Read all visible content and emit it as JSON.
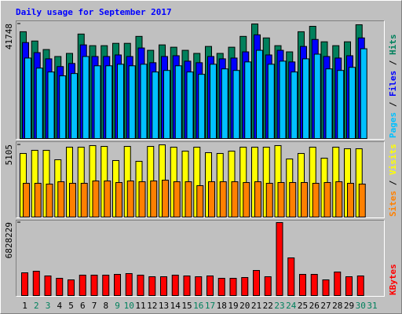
{
  "chart_data": {
    "type": "bar",
    "title": "Daily usage for September 2017",
    "legend_separator": "/",
    "categories": [
      "1",
      "2",
      "3",
      "4",
      "5",
      "6",
      "7",
      "8",
      "9",
      "10",
      "11",
      "12",
      "13",
      "14",
      "15",
      "16",
      "17",
      "18",
      "19",
      "20",
      "21",
      "22",
      "23",
      "24",
      "25",
      "26",
      "27",
      "28",
      "29",
      "30",
      "31"
    ],
    "category_colors": [
      "#000000",
      "#00805c",
      "#00805c",
      "#000000",
      "#000000",
      "#000000",
      "#000000",
      "#000000",
      "#00805c",
      "#00805c",
      "#000000",
      "#000000",
      "#000000",
      "#000000",
      "#000000",
      "#00805c",
      "#00805c",
      "#000000",
      "#000000",
      "#000000",
      "#000000",
      "#000000",
      "#00805c",
      "#00805c",
      "#000000",
      "#000000",
      "#000000",
      "#000000",
      "#000000",
      "#00805c",
      "#00805c"
    ],
    "panels": [
      {
        "ylim": [
          0,
          41748
        ],
        "yticks": [
          41748
        ],
        "series": [
          {
            "name": "Pages",
            "color": "#00c0ff",
            "values": [
              29328,
              25662,
              24252,
              22842,
              23688,
              29892,
              26508,
              26508,
              27072,
              26508,
              27072,
              24252,
              24816,
              26508,
              24252,
              23406,
              27072,
              25380,
              24816,
              27918,
              32148,
              27072,
              28200,
              24252,
              29046,
              30738,
              25380,
              24816,
              25944,
              32712,
              null
            ]
          },
          {
            "name": "Files",
            "color": "#0000ff",
            "values": [
              34968,
              31302,
              29046,
              26226,
              27354,
              34122,
              29892,
              29892,
              30456,
              29892,
              32994,
              27636,
              29892,
              30174,
              28200,
              27636,
              29892,
              29046,
              29328,
              31584,
              37788,
              30456,
              32148,
              27918,
              33558,
              36096,
              29892,
              29328,
              30174,
              36660,
              null
            ]
          },
          {
            "name": "Hits",
            "color": "#00805c",
            "values": [
              38916,
              35532,
              32430,
              29892,
              31020,
              38070,
              33840,
              33840,
              34686,
              34686,
              37224,
              32148,
              34122,
              33276,
              32148,
              31020,
              33558,
              31020,
              33276,
              37224,
              41748,
              36660,
              33840,
              31584,
              38916,
              40890,
              35250,
              33840,
              35250,
              41454,
              null
            ]
          }
        ]
      },
      {
        "ylim": [
          0,
          5105
        ],
        "yticks": [
          5105
        ],
        "series": [
          {
            "name": "Sites",
            "color": "#ff8000",
            "values": [
              2387,
              2387,
              2331,
              2498,
              2387,
              2387,
              2553,
              2553,
              2442,
              2553,
              2498,
              2553,
              2609,
              2498,
              2498,
              2220,
              2498,
              2498,
              2498,
              2442,
              2498,
              2387,
              2442,
              2442,
              2442,
              2387,
              2442,
              2498,
              2387,
              2331,
              null
            ]
          },
          {
            "name": "Visits",
            "color": "#ffff00",
            "values": [
              4496,
              4718,
              4718,
              4052,
              4940,
              4940,
              5051,
              4995,
              3996,
              4995,
              3941,
              4995,
              5105,
              4940,
              4662,
              4940,
              4551,
              4496,
              4662,
              4940,
              4940,
              4940,
              5051,
              4107,
              4496,
              4940,
              4163,
              4940,
              4829,
              4829,
              null
            ]
          }
        ]
      },
      {
        "ylim": [
          0,
          6828229
        ],
        "yticks": [
          6828229
        ],
        "series": [
          {
            "name": "KBytes",
            "color": "#ff0000",
            "values": [
              2129238,
              2276082,
              1835550,
              1615284,
              1468440,
              1908972,
              1908972,
              1908972,
              1982394,
              2055816,
              1908972,
              1762128,
              1762128,
              1908972,
              1835550,
              1762128,
              1835550,
              1615284,
              1615284,
              1688706,
              2349504,
              1762128,
              6828229,
              3524256,
              1982394,
              1982394,
              1468440,
              2202660,
              1762128,
              1835550,
              null
            ]
          }
        ]
      }
    ]
  }
}
